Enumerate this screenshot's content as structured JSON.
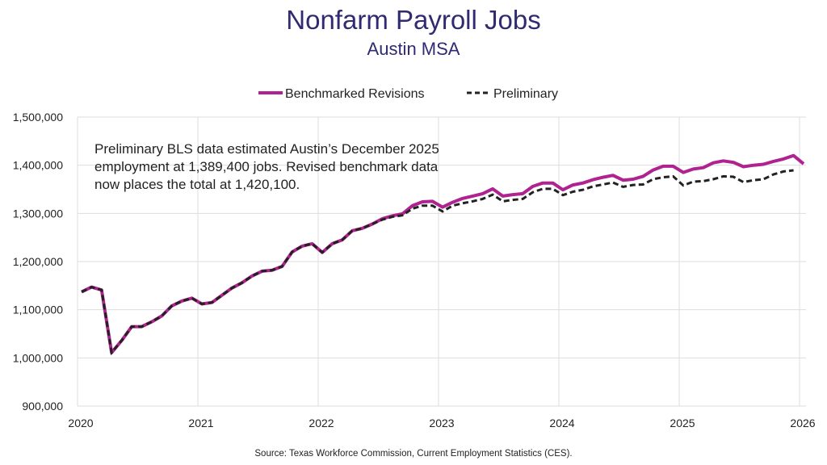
{
  "chart_data": {
    "type": "line",
    "title": "Nonfarm Payroll Jobs",
    "subtitle": "Austin MSA",
    "source": "Source: Texas Workforce Commission, Current Employment Statistics (CES).",
    "annotation": [
      "Preliminary BLS data estimated Austin’s December 2025",
      "employment at 1,389,400 jobs. Revised benchmark data",
      "now places the total at 1,420,100."
    ],
    "x_start": "2020-01",
    "x_frequency": "monthly",
    "x_ticks": [
      "2020",
      "2021",
      "2022",
      "2023",
      "2024",
      "2025",
      "2026"
    ],
    "y_ticks": [
      "900,000",
      "1,000,000",
      "1,100,000",
      "1,200,000",
      "1,300,000",
      "1,400,000",
      "1,500,000"
    ],
    "ylim": [
      900000,
      1500000
    ],
    "grid": true,
    "legend_position": "top-center",
    "colors": {
      "revised": "#b0228f",
      "preliminary": "#222222",
      "title": "#2f2a72",
      "grid": "#dddddd"
    },
    "series": [
      {
        "name": "Benchmarked Revisions",
        "style": "solid",
        "values": [
          1137000,
          1147000,
          1141000,
          1011000,
          1036000,
          1065000,
          1065000,
          1075000,
          1087000,
          1108000,
          1118000,
          1124000,
          1112000,
          1115000,
          1130000,
          1145000,
          1156000,
          1170000,
          1180000,
          1182000,
          1190000,
          1220000,
          1232000,
          1237000,
          1219000,
          1237000,
          1245000,
          1264000,
          1269000,
          1278000,
          1289000,
          1295000,
          1299000,
          1316000,
          1324000,
          1325000,
          1313000,
          1323000,
          1331000,
          1336000,
          1341000,
          1351000,
          1336000,
          1339000,
          1341000,
          1356000,
          1363000,
          1363000,
          1349000,
          1359000,
          1363000,
          1370000,
          1375000,
          1379000,
          1369000,
          1371000,
          1377000,
          1390000,
          1398000,
          1398000,
          1385000,
          1392000,
          1395000,
          1405000,
          1409000,
          1406000,
          1397000,
          1400000,
          1402000,
          1408000,
          1413000,
          1420100,
          1403000
        ]
      },
      {
        "name": "Preliminary",
        "style": "dashed",
        "values": [
          1137000,
          1147000,
          1141000,
          1011000,
          1036000,
          1065000,
          1065000,
          1075000,
          1087000,
          1108000,
          1118000,
          1124000,
          1112000,
          1115000,
          1130000,
          1145000,
          1156000,
          1170000,
          1180000,
          1182000,
          1190000,
          1220000,
          1232000,
          1237000,
          1219000,
          1237000,
          1245000,
          1264000,
          1269000,
          1278000,
          1287000,
          1293000,
          1296000,
          1310000,
          1316000,
          1316000,
          1304000,
          1316000,
          1321000,
          1325000,
          1330000,
          1339000,
          1325000,
          1328000,
          1330000,
          1344000,
          1351000,
          1351000,
          1338000,
          1345000,
          1349000,
          1356000,
          1360000,
          1364000,
          1355000,
          1359000,
          1360000,
          1371000,
          1375000,
          1377000,
          1358000,
          1366000,
          1367000,
          1371000,
          1377000,
          1376000,
          1365000,
          1369000,
          1371000,
          1381000,
          1387000,
          1389400
        ]
      }
    ]
  }
}
